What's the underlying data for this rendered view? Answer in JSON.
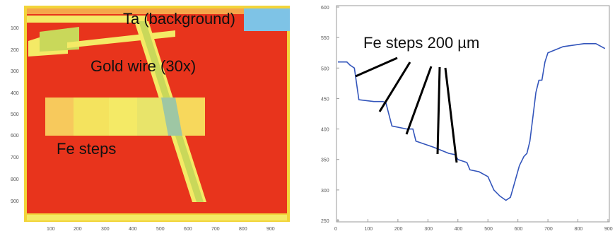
{
  "panels": [
    {
      "id": "map",
      "type": "heatmap",
      "annotations": [
        "Ta (background)",
        "Gold wire (30x)",
        "Fe steps"
      ],
      "x_ticks": [
        "100",
        "200",
        "300",
        "400",
        "500",
        "600",
        "700",
        "800",
        "900"
      ],
      "y_ticks": [
        "100",
        "200",
        "300",
        "400",
        "500",
        "600",
        "700",
        "800",
        "900"
      ],
      "colors": {
        "ta_background": "#e8341c",
        "gold_wire": "#c9d85a",
        "fe_steps": "#f4ea66",
        "top_band": "#7ec3e6",
        "frame": "#f2d43a"
      }
    },
    {
      "id": "profile",
      "type": "line",
      "annotation": "Fe steps 200 µm",
      "series_color": "#3355bb"
    }
  ],
  "chart_data": {
    "type": "line",
    "title": "",
    "xlabel": "",
    "ylabel": "",
    "xlim": [
      0,
      900
    ],
    "ylim": [
      250,
      600
    ],
    "x_ticks": [
      "0",
      "100",
      "200",
      "300",
      "400",
      "500",
      "600",
      "700",
      "800",
      "900"
    ],
    "y_ticks": [
      "250",
      "300",
      "350",
      "400",
      "450",
      "500",
      "550",
      "600"
    ],
    "grid": false,
    "series": [
      {
        "x": [
          0,
          30,
          40,
          55,
          70,
          120,
          150,
          160,
          180,
          230,
          250,
          260,
          290,
          320,
          370,
          390,
          400,
          430,
          440,
          470,
          500,
          520,
          540,
          560,
          575,
          585,
          605,
          620,
          630,
          640,
          650,
          660,
          670,
          680,
          690,
          700,
          750,
          820,
          860,
          890
        ],
        "y": [
          510,
          510,
          505,
          500,
          448,
          445,
          445,
          443,
          405,
          400,
          400,
          380,
          375,
          370,
          360,
          358,
          350,
          345,
          333,
          330,
          322,
          300,
          290,
          283,
          288,
          305,
          340,
          355,
          360,
          380,
          420,
          460,
          480,
          480,
          510,
          525,
          535,
          540,
          540,
          532
        ]
      }
    ]
  }
}
